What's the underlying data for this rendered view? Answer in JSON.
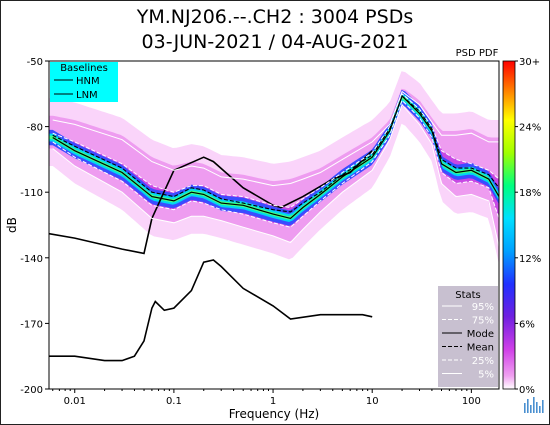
{
  "header": {
    "title_line1": "YM.NJ206.--.CH2 : 3004 PSDs",
    "title_line2": "03-JUN-2021 / 04-AUG-2021"
  },
  "chart_data": {
    "type": "heatmap",
    "title": "YM.NJ206.--.CH2 : 3004 PSDs",
    "subtitle": "03-JUN-2021 / 04-AUG-2021",
    "xlabel": "Frequency (Hz)",
    "ylabel": "dB",
    "xscale": "log",
    "xlim": [
      0.0055,
      190
    ],
    "ylim": [
      -200,
      -50
    ],
    "x_ticks": [
      0.01,
      0.1,
      1,
      10,
      100
    ],
    "x_tick_labels": [
      "0.01",
      "0.1",
      "1",
      "10",
      "100"
    ],
    "y_ticks": [
      -50,
      -80,
      -110,
      -140,
      -170,
      -200
    ],
    "y_tick_labels": [
      "-50",
      "-80",
      "-110",
      "-140",
      "-170",
      "-200"
    ],
    "colorbar": {
      "label": "PSD PDF",
      "ticks": [
        "0%",
        "6%",
        "12%",
        "18%",
        "24%",
        "30+"
      ]
    },
    "legend_baselines": {
      "title": "Baselines",
      "entries": [
        "HNM",
        "LNM"
      ],
      "placement": "top-left",
      "background": "#00ffff"
    },
    "legend_stats": {
      "title": "Stats",
      "entries": [
        "95%",
        "75%",
        "Mode",
        "Mean",
        "25%",
        "5%"
      ],
      "placement": "bottom-right",
      "background": "#c8c0d0"
    },
    "series": [
      {
        "name": "HNM",
        "style": "solid-black",
        "points": [
          [
            0.0055,
            -129
          ],
          [
            0.01,
            -131
          ],
          [
            0.03,
            -136
          ],
          [
            0.05,
            -138
          ],
          [
            0.06,
            -122
          ],
          [
            0.1,
            -100
          ],
          [
            0.2,
            -94
          ],
          [
            0.25,
            -96
          ],
          [
            0.5,
            -108
          ],
          [
            1,
            -116
          ],
          [
            1.2,
            -117
          ],
          [
            2,
            -112
          ],
          [
            4,
            -104
          ],
          [
            6,
            -101
          ],
          [
            10,
            -91
          ]
        ]
      },
      {
        "name": "LNM",
        "style": "solid-black",
        "points": [
          [
            0.0055,
            -185
          ],
          [
            0.01,
            -185
          ],
          [
            0.02,
            -187
          ],
          [
            0.03,
            -187
          ],
          [
            0.04,
            -185
          ],
          [
            0.05,
            -178
          ],
          [
            0.06,
            -163
          ],
          [
            0.065,
            -160
          ],
          [
            0.08,
            -164
          ],
          [
            0.1,
            -163
          ],
          [
            0.15,
            -155
          ],
          [
            0.2,
            -142
          ],
          [
            0.25,
            -141
          ],
          [
            0.3,
            -144
          ],
          [
            0.5,
            -154
          ],
          [
            1,
            -162
          ],
          [
            1.5,
            -168
          ],
          [
            3,
            -166
          ],
          [
            5,
            -166
          ],
          [
            8,
            -166
          ],
          [
            10,
            -167
          ]
        ]
      },
      {
        "name": "95%",
        "style": "white-solid",
        "points": [
          [
            0.006,
            -77
          ],
          [
            0.01,
            -79
          ],
          [
            0.03,
            -86
          ],
          [
            0.06,
            -96
          ],
          [
            0.1,
            -100
          ],
          [
            0.15,
            -98
          ],
          [
            0.2,
            -99
          ],
          [
            0.3,
            -103
          ],
          [
            0.5,
            -104
          ],
          [
            1,
            -107
          ],
          [
            1.5,
            -106
          ],
          [
            2,
            -104
          ],
          [
            3,
            -101
          ],
          [
            5,
            -95
          ],
          [
            10,
            -87
          ],
          [
            15,
            -79
          ],
          [
            20,
            -64
          ],
          [
            30,
            -70
          ],
          [
            40,
            -78
          ],
          [
            50,
            -84
          ],
          [
            70,
            -84
          ],
          [
            100,
            -83
          ],
          [
            150,
            -87
          ],
          [
            190,
            -87
          ]
        ]
      },
      {
        "name": "75%",
        "style": "white-dashed",
        "points": [
          [
            0.006,
            -83
          ],
          [
            0.01,
            -87
          ],
          [
            0.03,
            -97
          ],
          [
            0.06,
            -107
          ],
          [
            0.1,
            -110
          ],
          [
            0.15,
            -107
          ],
          [
            0.2,
            -107
          ],
          [
            0.3,
            -111
          ],
          [
            0.5,
            -112
          ],
          [
            1,
            -116
          ],
          [
            1.5,
            -117
          ],
          [
            2,
            -113
          ],
          [
            3,
            -108
          ],
          [
            5,
            -101
          ],
          [
            10,
            -92
          ],
          [
            15,
            -80
          ],
          [
            20,
            -65
          ],
          [
            30,
            -72
          ],
          [
            40,
            -80
          ],
          [
            50,
            -91
          ],
          [
            70,
            -95
          ],
          [
            100,
            -97
          ],
          [
            150,
            -100
          ],
          [
            190,
            -104
          ]
        ]
      },
      {
        "name": "Mode",
        "style": "black-solid",
        "points": [
          [
            0.006,
            -85
          ],
          [
            0.01,
            -91
          ],
          [
            0.03,
            -101
          ],
          [
            0.06,
            -112
          ],
          [
            0.1,
            -114
          ],
          [
            0.15,
            -110
          ],
          [
            0.2,
            -111
          ],
          [
            0.3,
            -115
          ],
          [
            0.5,
            -116
          ],
          [
            1,
            -120
          ],
          [
            1.5,
            -122
          ],
          [
            2,
            -117
          ],
          [
            3,
            -111
          ],
          [
            5,
            -103
          ],
          [
            10,
            -94
          ],
          [
            15,
            -82
          ],
          [
            20,
            -66
          ],
          [
            30,
            -74
          ],
          [
            40,
            -82
          ],
          [
            50,
            -97
          ],
          [
            70,
            -101
          ],
          [
            100,
            -100
          ],
          [
            150,
            -104
          ],
          [
            190,
            -112
          ]
        ]
      },
      {
        "name": "Mean",
        "style": "black-dashed",
        "points": [
          [
            0.006,
            -84
          ],
          [
            0.01,
            -89
          ],
          [
            0.03,
            -99
          ],
          [
            0.06,
            -110
          ],
          [
            0.1,
            -112
          ],
          [
            0.15,
            -108
          ],
          [
            0.2,
            -109
          ],
          [
            0.3,
            -113
          ],
          [
            0.5,
            -115
          ],
          [
            1,
            -118
          ],
          [
            1.5,
            -119
          ],
          [
            2,
            -115
          ],
          [
            3,
            -110
          ],
          [
            5,
            -102
          ],
          [
            10,
            -93
          ],
          [
            15,
            -81
          ],
          [
            20,
            -66
          ],
          [
            30,
            -73
          ],
          [
            40,
            -81
          ],
          [
            50,
            -95
          ],
          [
            70,
            -99
          ],
          [
            100,
            -99
          ],
          [
            150,
            -102
          ],
          [
            190,
            -108
          ]
        ]
      },
      {
        "name": "25%",
        "style": "white-dashed",
        "points": [
          [
            0.006,
            -87
          ],
          [
            0.01,
            -94
          ],
          [
            0.03,
            -105
          ],
          [
            0.06,
            -116
          ],
          [
            0.1,
            -118
          ],
          [
            0.15,
            -114
          ],
          [
            0.2,
            -115
          ],
          [
            0.3,
            -118
          ],
          [
            0.5,
            -120
          ],
          [
            1,
            -124
          ],
          [
            1.5,
            -126
          ],
          [
            2,
            -121
          ],
          [
            3,
            -114
          ],
          [
            5,
            -106
          ],
          [
            10,
            -96
          ],
          [
            15,
            -84
          ],
          [
            20,
            -68
          ],
          [
            30,
            -76
          ],
          [
            40,
            -85
          ],
          [
            50,
            -101
          ],
          [
            70,
            -106
          ],
          [
            100,
            -105
          ],
          [
            150,
            -108
          ],
          [
            190,
            -122
          ]
        ]
      },
      {
        "name": "5%",
        "style": "white-solid",
        "points": [
          [
            0.006,
            -90
          ],
          [
            0.01,
            -98
          ],
          [
            0.03,
            -110
          ],
          [
            0.06,
            -122
          ],
          [
            0.1,
            -124
          ],
          [
            0.15,
            -121
          ],
          [
            0.2,
            -121
          ],
          [
            0.3,
            -123
          ],
          [
            0.5,
            -126
          ],
          [
            1,
            -130
          ],
          [
            1.5,
            -133
          ],
          [
            2,
            -127
          ],
          [
            3,
            -119
          ],
          [
            5,
            -110
          ],
          [
            10,
            -100
          ],
          [
            15,
            -86
          ],
          [
            20,
            -70
          ],
          [
            30,
            -79
          ],
          [
            40,
            -88
          ],
          [
            50,
            -106
          ],
          [
            70,
            -112
          ],
          [
            100,
            -111
          ],
          [
            150,
            -114
          ],
          [
            190,
            -135
          ]
        ]
      }
    ]
  }
}
